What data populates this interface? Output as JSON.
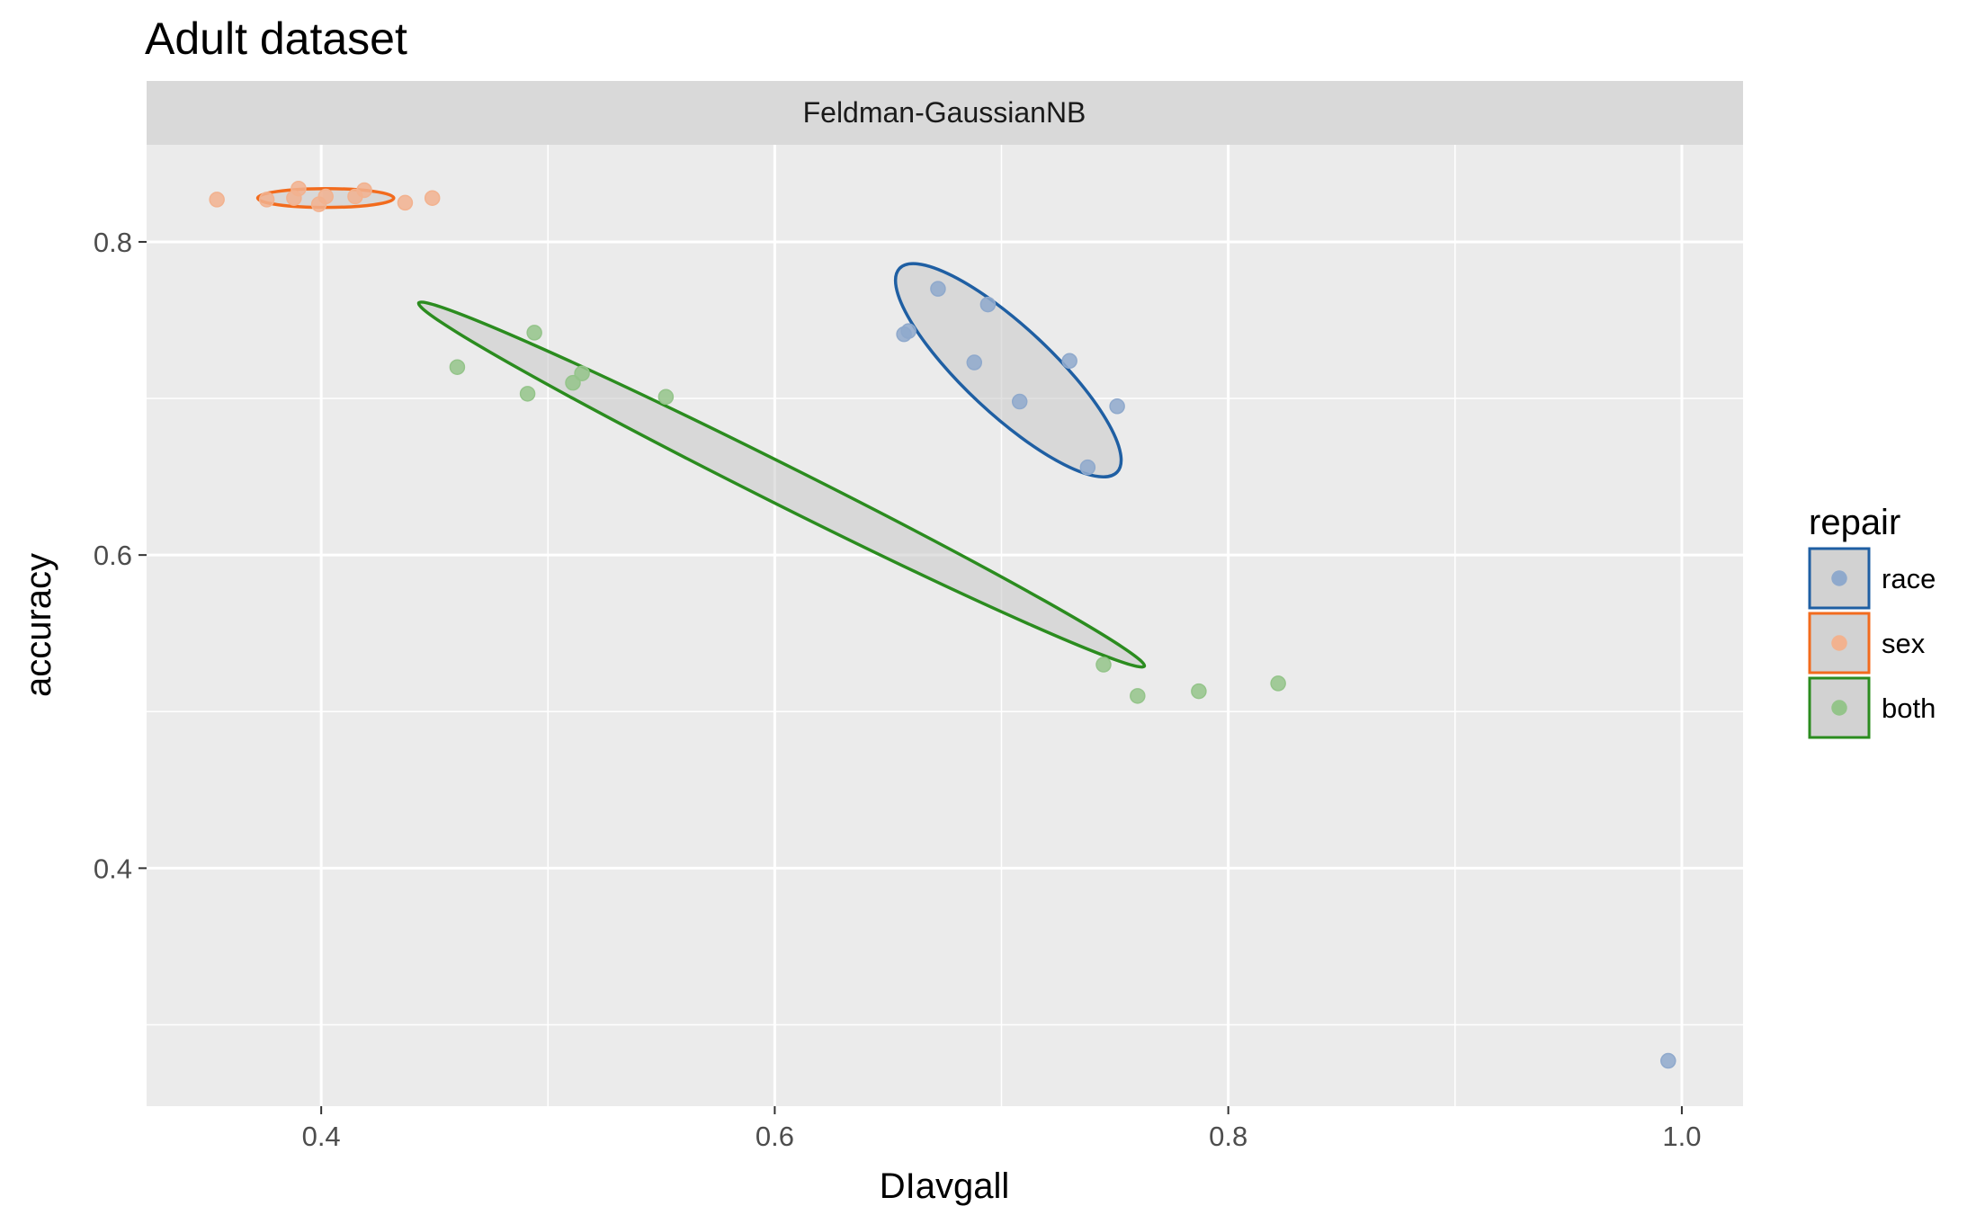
{
  "chart_data": {
    "type": "scatter",
    "title": "Adult dataset",
    "facet_label": "Feldman-GaussianNB",
    "xlabel": "DIavgall",
    "ylabel": "accuracy",
    "xlim": [
      0.323,
      1.027
    ],
    "ylim": [
      0.248,
      0.862
    ],
    "x_ticks": [
      0.4,
      0.6,
      0.8,
      1.0
    ],
    "x_tick_labels": [
      "0.4",
      "0.6",
      "0.8",
      "1.0"
    ],
    "y_ticks": [
      0.4,
      0.6,
      0.8
    ],
    "y_tick_labels": [
      "0.4",
      "0.6",
      "0.8"
    ],
    "grid": true,
    "legend": {
      "title": "repair",
      "position": "right"
    },
    "series": [
      {
        "name": "race",
        "color": "#1f5fa3",
        "point_color": "#8fa9cc",
        "points": [
          [
            0.657,
            0.741
          ],
          [
            0.659,
            0.743
          ],
          [
            0.672,
            0.77
          ],
          [
            0.688,
            0.723
          ],
          [
            0.694,
            0.76
          ],
          [
            0.708,
            0.698
          ],
          [
            0.73,
            0.724
          ],
          [
            0.738,
            0.656
          ],
          [
            0.751,
            0.695
          ],
          [
            0.994,
            0.277
          ]
        ],
        "ellipse": {
          "center": [
            0.703,
            0.718
          ],
          "endpoints": [
            [
              0.655,
              0.783
            ],
            [
              0.751,
              0.653
            ]
          ],
          "minor_half_width": 0.038
        }
      },
      {
        "name": "sex",
        "color": "#f26b1d",
        "point_color": "#f2b28f",
        "points": [
          [
            0.354,
            0.827
          ],
          [
            0.376,
            0.827
          ],
          [
            0.388,
            0.828
          ],
          [
            0.39,
            0.834
          ],
          [
            0.399,
            0.824
          ],
          [
            0.402,
            0.829
          ],
          [
            0.415,
            0.829
          ],
          [
            0.419,
            0.833
          ],
          [
            0.437,
            0.825
          ],
          [
            0.449,
            0.828
          ]
        ],
        "ellipse": {
          "center": [
            0.402,
            0.828
          ],
          "endpoints": [
            [
              0.372,
              0.828
            ],
            [
              0.432,
              0.828
            ]
          ],
          "minor_half_width": 0.006
        }
      },
      {
        "name": "both",
        "color": "#2b8c1f",
        "point_color": "#94c48a",
        "points": [
          [
            0.46,
            0.72
          ],
          [
            0.491,
            0.703
          ],
          [
            0.494,
            0.742
          ],
          [
            0.511,
            0.71
          ],
          [
            0.515,
            0.716
          ],
          [
            0.552,
            0.701
          ],
          [
            0.745,
            0.53
          ],
          [
            0.76,
            0.51
          ],
          [
            0.787,
            0.513
          ],
          [
            0.822,
            0.518
          ]
        ],
        "ellipse": {
          "center": [
            0.603,
            0.645
          ],
          "endpoints": [
            [
              0.443,
              0.761
            ],
            [
              0.763,
              0.529
            ]
          ],
          "minor_half_width": 0.014
        }
      }
    ]
  }
}
